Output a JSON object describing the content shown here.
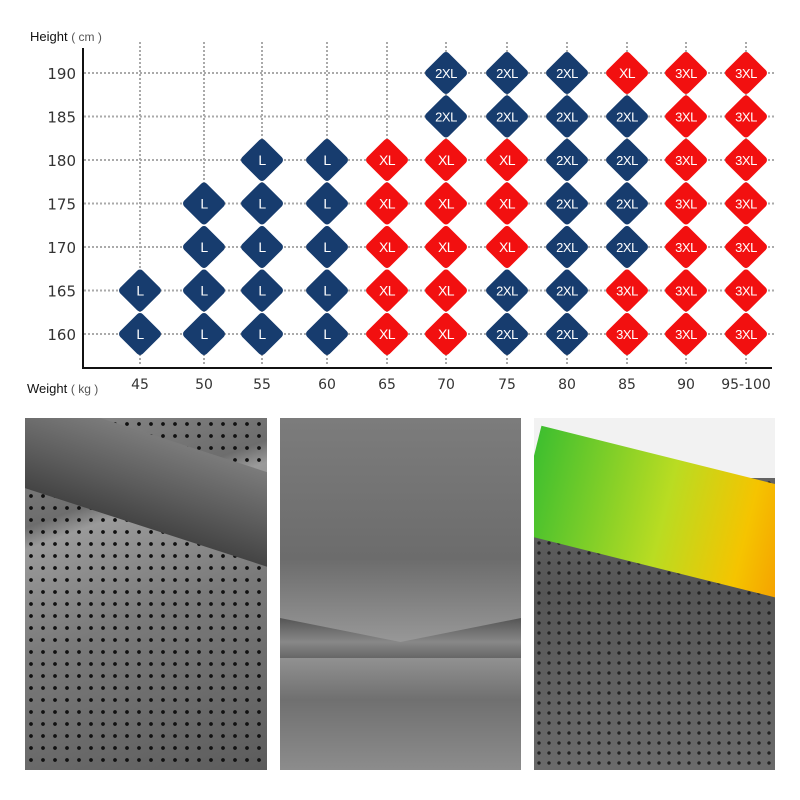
{
  "chart_data": {
    "type": "table",
    "ylabel": "Height",
    "ylabel_unit": "( cm )",
    "xlabel": "Weight",
    "xlabel_unit": "( kg )",
    "x": [
      "45",
      "50",
      "55",
      "60",
      "65",
      "70",
      "75",
      "80",
      "85",
      "90",
      "95-100"
    ],
    "y": [
      "190",
      "185",
      "180",
      "175",
      "170",
      "165",
      "160"
    ],
    "grid": true,
    "size_colors": {
      "L": "#173c6e",
      "XL": "#f21010",
      "2XL": "#173c6e",
      "3XL": "#f21010"
    },
    "cells": [
      [
        "",
        "",
        "",
        "",
        "",
        "2XL",
        "2XL",
        "2XL",
        "XL",
        "3XL",
        "3XL"
      ],
      [
        "",
        "",
        "",
        "",
        "",
        "2XL",
        "2XL",
        "2XL",
        "2XL",
        "3XL",
        "3XL"
      ],
      [
        "",
        "",
        "L",
        "L",
        "XL",
        "XL",
        "XL",
        "2XL",
        "2XL",
        "3XL",
        "3XL"
      ],
      [
        "",
        "L",
        "L",
        "L",
        "XL",
        "XL",
        "XL",
        "2XL",
        "2XL",
        "3XL",
        "3XL"
      ],
      [
        "",
        "L",
        "L",
        "L",
        "XL",
        "XL",
        "XL",
        "2XL",
        "2XL",
        "3XL",
        "3XL"
      ],
      [
        "L",
        "L",
        "L",
        "L",
        "XL",
        "XL",
        "2XL",
        "2XL",
        "3XL",
        "3XL",
        "3XL"
      ],
      [
        "L",
        "L",
        "L",
        "L",
        "XL",
        "XL",
        "2XL",
        "2XL",
        "3XL",
        "3XL",
        "3XL"
      ]
    ]
  },
  "photos": [
    "fabric-mesh-closeup",
    "fabric-seam-closeup",
    "waistband-closeup"
  ]
}
